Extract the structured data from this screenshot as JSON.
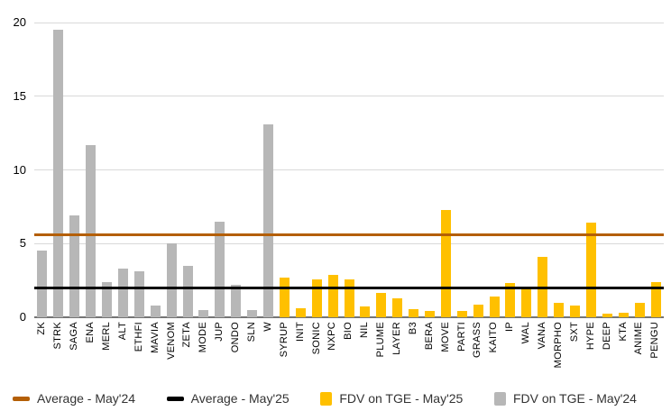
{
  "chart_data": {
    "type": "bar",
    "title": "",
    "xlabel": "",
    "ylabel": "",
    "ylim": [
      0,
      20
    ],
    "yticks": [
      0,
      5,
      10,
      15,
      20
    ],
    "grid": "horizontal",
    "legend_position": "bottom",
    "categories": [
      "ZK",
      "STRK",
      "SAGA",
      "ENA",
      "MERL",
      "ALT",
      "ETHFI",
      "MAVIA",
      "VENOM",
      "ZETA",
      "MODE",
      "JUP",
      "ONDO",
      "SLN",
      "W",
      "SYRUP",
      "INIT",
      "SONIC",
      "NXPC",
      "BIO",
      "NIL",
      "PLUME",
      "LAYER",
      "B3",
      "BERA",
      "MOVE",
      "PARTI",
      "GRASS",
      "KAITO",
      "IP",
      "WAL",
      "VANA",
      "MORPHO",
      "SXT",
      "HYPE",
      "DEEP",
      "KTA",
      "ANIME",
      "PENGU"
    ],
    "series": [
      {
        "name": "FDV on TGE - May'24",
        "color": "#b7b7b7",
        "values": [
          4.5,
          19.5,
          6.9,
          11.7,
          2.4,
          3.3,
          3.1,
          0.8,
          5.0,
          3.5,
          0.5,
          6.5,
          2.2,
          0.5,
          13.1,
          null,
          null,
          null,
          null,
          null,
          null,
          null,
          null,
          null,
          null,
          null,
          null,
          null,
          null,
          null,
          null,
          null,
          null,
          null,
          null,
          null,
          null,
          null,
          null
        ]
      },
      {
        "name": "FDV on TGE - May'25",
        "color": "#ffc000",
        "values": [
          null,
          null,
          null,
          null,
          null,
          null,
          null,
          null,
          null,
          null,
          null,
          null,
          null,
          null,
          null,
          2.7,
          0.6,
          2.6,
          2.9,
          2.6,
          0.75,
          1.65,
          1.3,
          0.55,
          0.45,
          7.3,
          0.4,
          0.85,
          1.4,
          2.35,
          1.9,
          4.1,
          0.95,
          0.8,
          6.4,
          0.25,
          0.3,
          0.95,
          2.4
        ]
      }
    ],
    "ref_lines": [
      {
        "name": "Average - May'24",
        "value": 5.6,
        "color": "#b45f06"
      },
      {
        "name": "Average - May'25",
        "value": 2.0,
        "color": "#000000"
      }
    ]
  },
  "legend": {
    "items": [
      {
        "label": "Average - May'24",
        "swatch": "line",
        "color": "#b45f06"
      },
      {
        "label": "Average - May'25",
        "swatch": "line",
        "color": "#000000"
      },
      {
        "label": "FDV on TGE - May'25",
        "swatch": "square",
        "color": "#ffc000"
      },
      {
        "label": "FDV on TGE - May'24",
        "swatch": "square",
        "color": "#b7b7b7"
      }
    ]
  },
  "colors": {
    "gridline": "#d9d9d9",
    "axis": "#757575",
    "tick_text": "#000000",
    "legend_text": "#333333",
    "background": "#ffffff"
  }
}
